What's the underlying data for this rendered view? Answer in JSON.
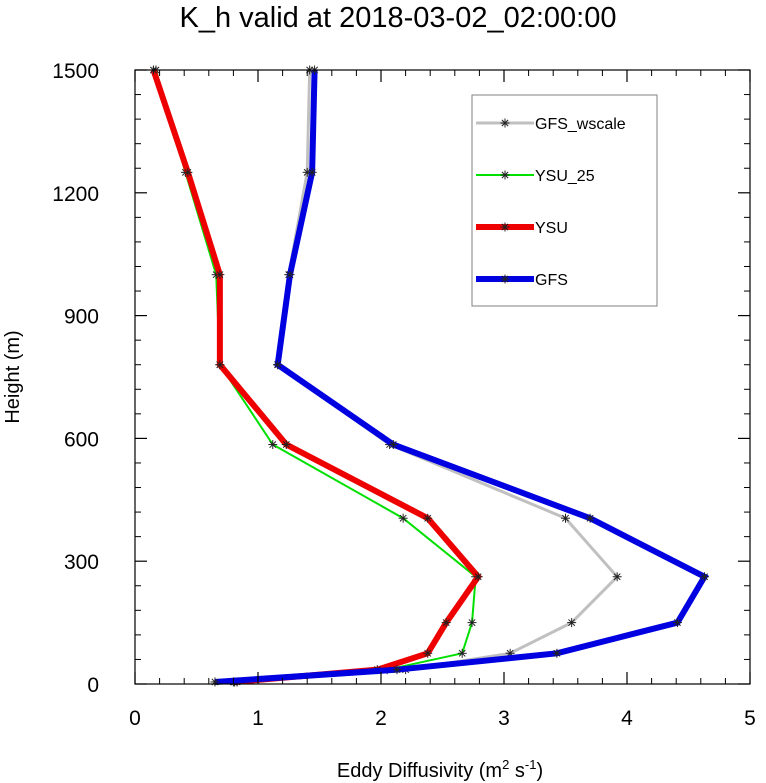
{
  "chart_data": {
    "type": "line",
    "title": "K_h valid at 2018-03-02_02:00:00",
    "xlabel": {
      "prefix": "Eddy Diffusivity (m",
      "sup1": "2",
      "mid": " s",
      "sup2": "-1",
      "suffix": ")"
    },
    "ylabel": "Height (m)",
    "xlim": [
      0,
      5
    ],
    "ylim": [
      0,
      1500
    ],
    "x_ticks": [
      0,
      1,
      2,
      3,
      4,
      5
    ],
    "x_tick_labels": [
      "0",
      "1",
      "2",
      "3",
      "4",
      "5"
    ],
    "y_ticks": [
      0,
      300,
      600,
      900,
      1200,
      1500
    ],
    "y_tick_labels": [
      "0",
      "300",
      "600",
      "900",
      "1200",
      "1500"
    ],
    "grid": false,
    "legend_position": "top-right",
    "series": [
      {
        "name": "GFS_wscale",
        "color": "#c0c0c0",
        "points": [
          [
            0.8,
            5
          ],
          [
            2.2,
            35
          ],
          [
            3.05,
            75
          ],
          [
            3.55,
            150
          ],
          [
            3.92,
            262
          ],
          [
            3.5,
            405
          ],
          [
            2.07,
            585
          ],
          [
            1.16,
            780
          ],
          [
            1.25,
            1000
          ],
          [
            1.4,
            1250
          ],
          [
            1.42,
            1500
          ]
        ]
      },
      {
        "name": "YSU_25",
        "color": "#00e000",
        "points": [
          [
            0.83,
            5
          ],
          [
            2.05,
            35
          ],
          [
            2.66,
            75
          ],
          [
            2.74,
            150
          ],
          [
            2.77,
            262
          ],
          [
            2.18,
            405
          ],
          [
            1.12,
            585
          ],
          [
            0.69,
            780
          ],
          [
            0.66,
            1000
          ],
          [
            0.41,
            1250
          ],
          [
            0.17,
            1500
          ]
        ]
      },
      {
        "name": "YSU",
        "color": "#ee0000",
        "points": [
          [
            0.81,
            5
          ],
          [
            1.97,
            35
          ],
          [
            2.38,
            75
          ],
          [
            2.53,
            150
          ],
          [
            2.79,
            262
          ],
          [
            2.38,
            405
          ],
          [
            1.23,
            585
          ],
          [
            0.69,
            780
          ],
          [
            0.69,
            1000
          ],
          [
            0.43,
            1250
          ],
          [
            0.15,
            1500
          ]
        ]
      },
      {
        "name": "GFS",
        "color": "#0000e0",
        "points": [
          [
            0.65,
            5
          ],
          [
            2.13,
            35
          ],
          [
            3.43,
            75
          ],
          [
            4.41,
            150
          ],
          [
            4.63,
            262
          ],
          [
            3.7,
            405
          ],
          [
            2.1,
            585
          ],
          [
            1.16,
            780
          ],
          [
            1.26,
            1000
          ],
          [
            1.44,
            1250
          ],
          [
            1.46,
            1500
          ]
        ]
      }
    ]
  }
}
